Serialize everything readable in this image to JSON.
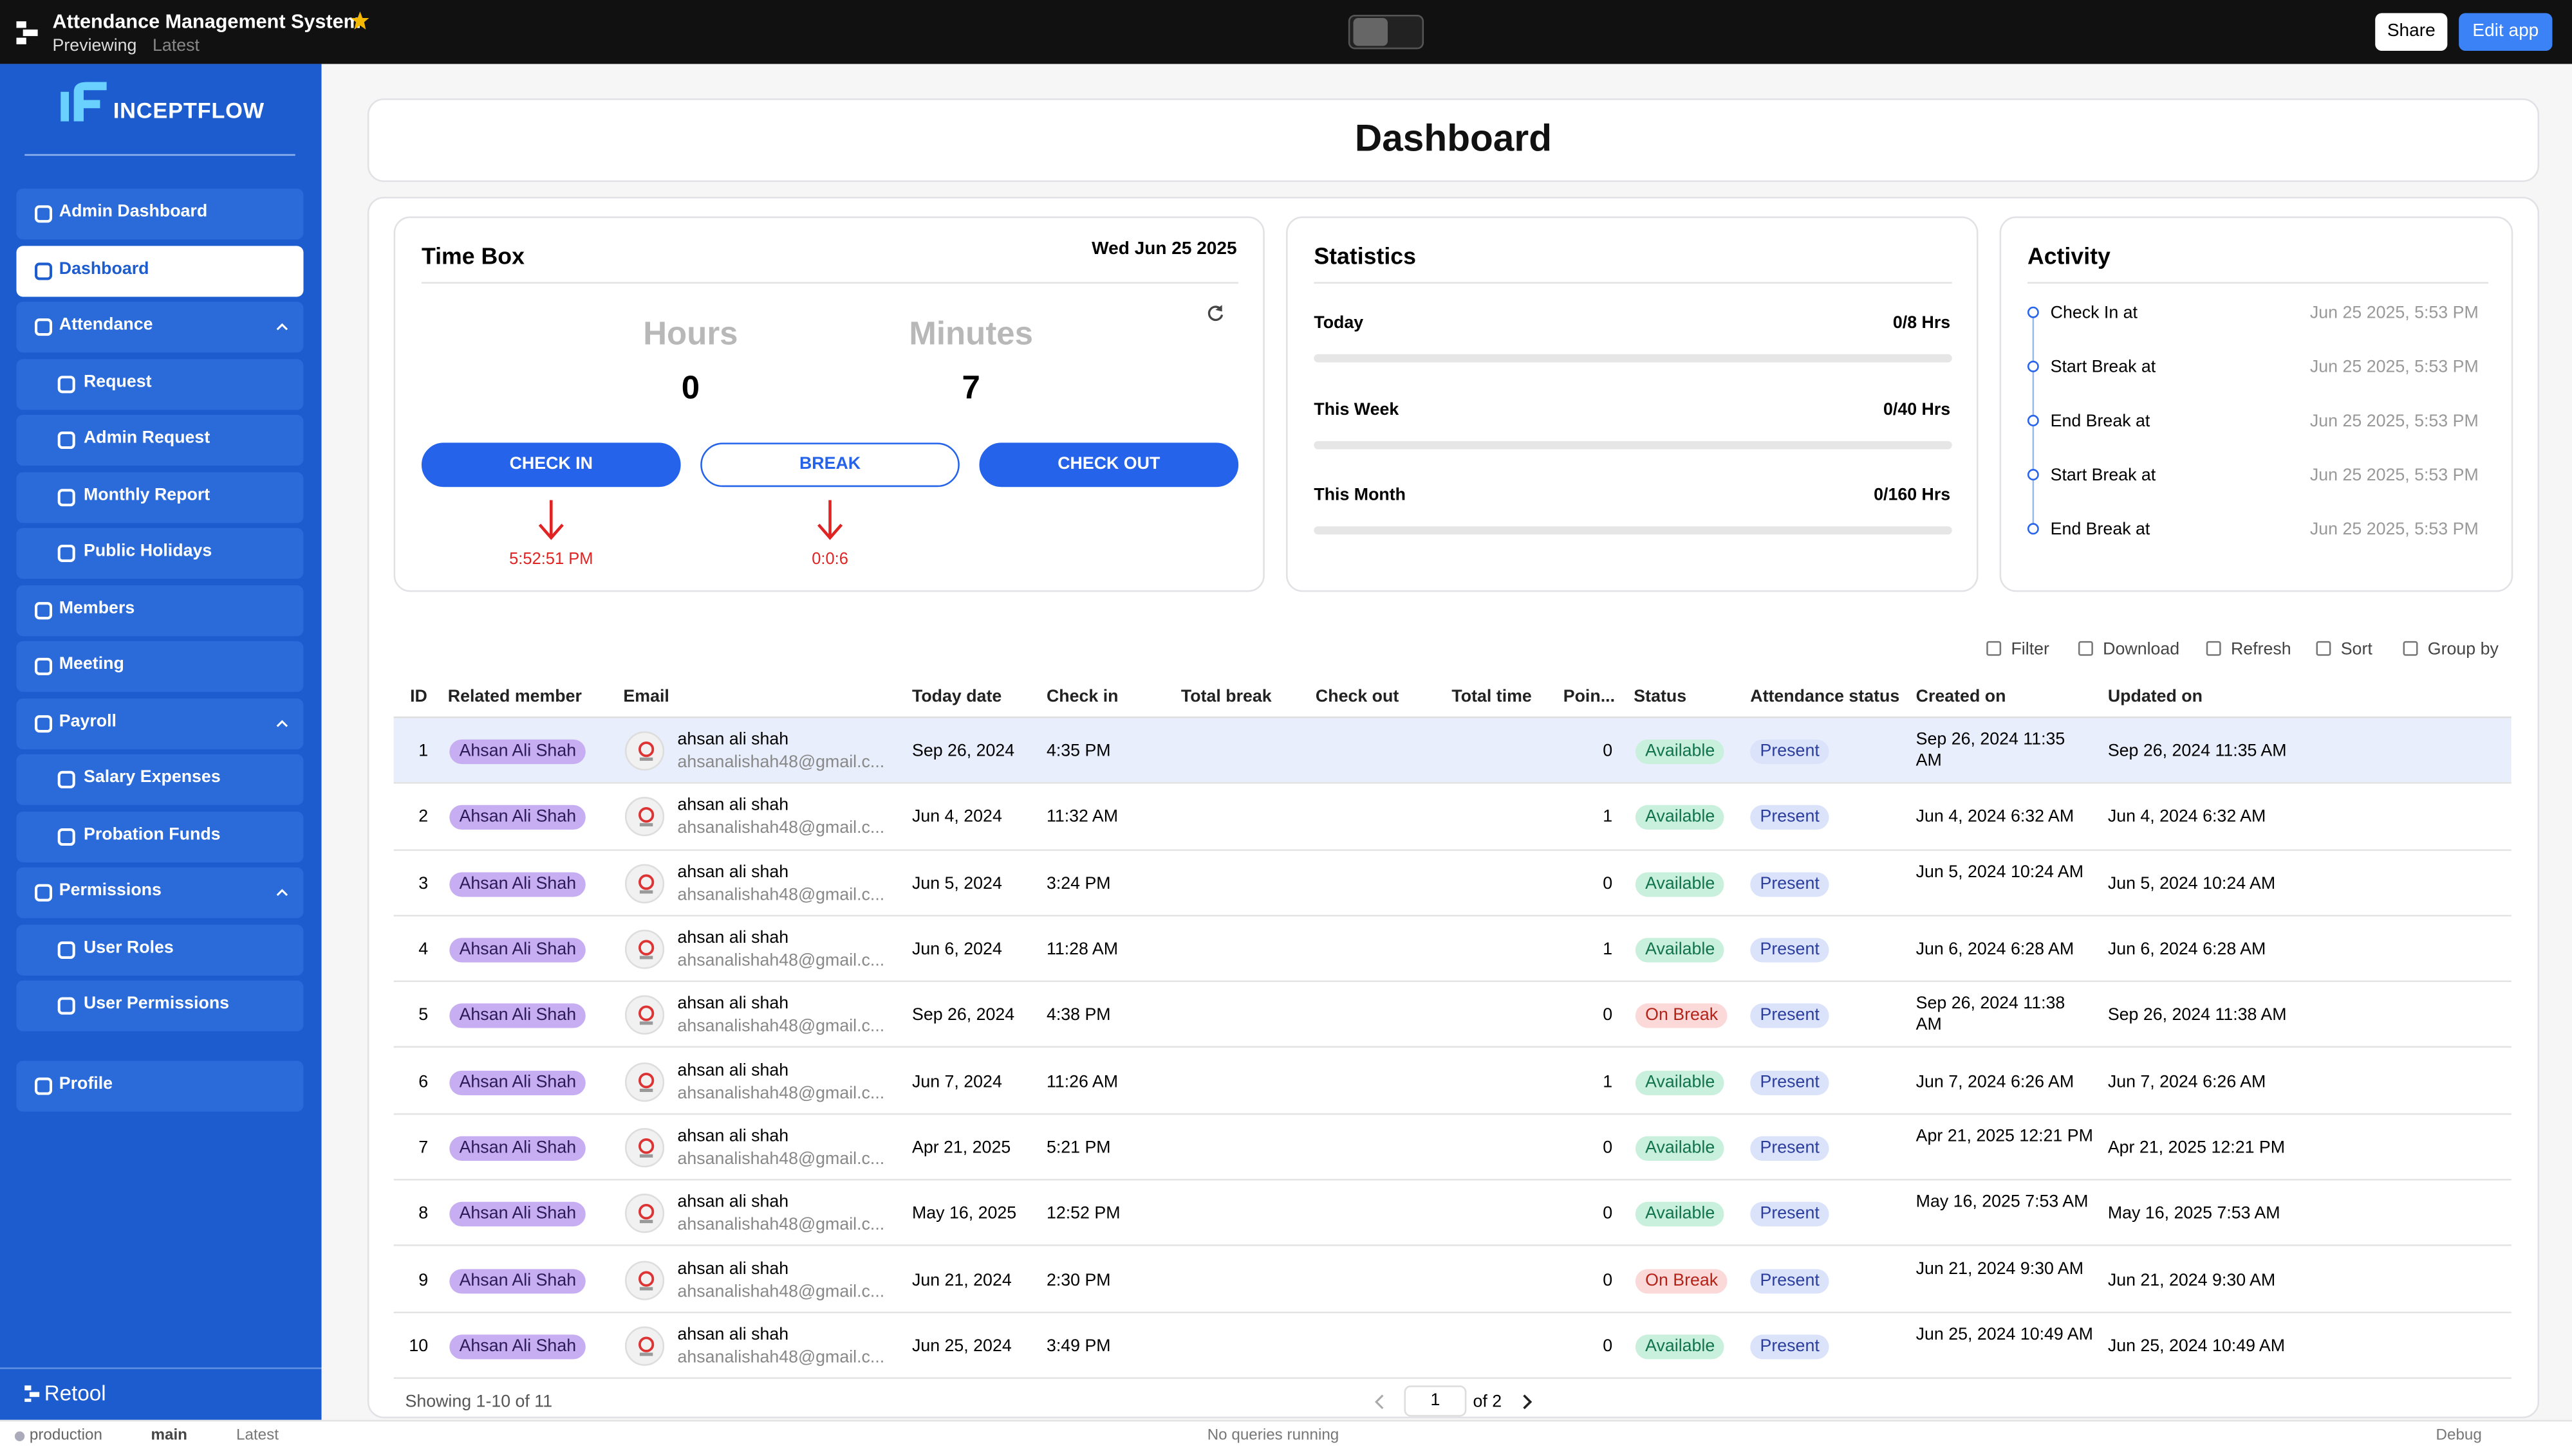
{
  "topbar": {
    "app_name": "Attendance Management System",
    "mode": "Previewing",
    "version": "Latest",
    "share": "Share",
    "edit": "Edit app"
  },
  "sidebar": {
    "logo": "INCEPTFLOW",
    "nav": [
      {
        "label": "Admin Dashboard"
      },
      {
        "label": "Dashboard",
        "selected": true
      },
      {
        "label": "Attendance",
        "children": [
          "Request",
          "Admin Request",
          "Monthly Report",
          "Public Holidays"
        ]
      },
      {
        "label": "Members"
      },
      {
        "label": "Meeting"
      },
      {
        "label": "Payroll",
        "children": [
          "Salary Expenses",
          "Probation Funds"
        ]
      },
      {
        "label": "Permissions",
        "children": [
          "User Roles",
          "User Permissions"
        ]
      }
    ],
    "profile": "Profile",
    "footer": "Retool"
  },
  "header": {
    "title": "Dashboard"
  },
  "time_box": {
    "title": "Time Box",
    "date": "Wed Jun 25 2025",
    "hours_label": "Hours",
    "hours": 0,
    "minutes_label": "Minutes",
    "minutes": 7,
    "buttons": [
      "CHECK IN",
      "BREAK",
      "CHECK OUT"
    ],
    "check_in_time": "5:52:51 PM",
    "break_time": "0:0:6"
  },
  "statistics": {
    "title": "Statistics",
    "rows": [
      {
        "label": "Today",
        "value": "0/8 Hrs"
      },
      {
        "label": "This Week",
        "value": "0/40 Hrs"
      },
      {
        "label": "This Month",
        "value": "0/160 Hrs"
      }
    ]
  },
  "activity": {
    "title": "Activity",
    "items": [
      {
        "label": "Check In at",
        "time": "Jun 25 2025, 5:53 PM"
      },
      {
        "label": "Start Break at",
        "time": "Jun 25 2025, 5:53 PM"
      },
      {
        "label": "End Break at",
        "time": "Jun 25 2025, 5:53 PM"
      },
      {
        "label": "Start Break at",
        "time": "Jun 25 2025, 5:53 PM"
      },
      {
        "label": "End Break at",
        "time": "Jun 25 2025, 5:53 PM"
      }
    ]
  },
  "toolbar": [
    "Filter",
    "Download",
    "Refresh",
    "Sort",
    "Group by"
  ],
  "table": {
    "columns": [
      "ID",
      "Related member",
      "Email",
      "Today date",
      "Check in",
      "Total break",
      "Check out",
      "Total time",
      "Poin...",
      "Status",
      "Attendance status",
      "Created on",
      "Updated on"
    ],
    "rows": [
      {
        "id": 1,
        "member": "Ahsan Ali Shah",
        "name": "ahsan ali shah",
        "email": "ahsanalishah48@gmail.c...",
        "date": "Sep 26, 2024",
        "check_in": "4:35 PM",
        "points": 0,
        "status": "Available",
        "status_color": "green",
        "attendance": "Present",
        "created": "Sep 26, 2024 11:35 AM",
        "updated": "Sep 26, 2024 11:35 AM",
        "selected": true
      },
      {
        "id": 2,
        "member": "Ahsan Ali Shah",
        "name": "ahsan ali shah",
        "email": "ahsanalishah48@gmail.c...",
        "date": "Jun 4, 2024",
        "check_in": "11:32 AM",
        "points": 1,
        "status": "Available",
        "status_color": "green",
        "attendance": "Present",
        "created": "Jun 4, 2024 6:32 AM",
        "updated": "Jun 4, 2024 6:32 AM"
      },
      {
        "id": 3,
        "member": "Ahsan Ali Shah",
        "name": "ahsan ali shah",
        "email": "ahsanalishah48@gmail.c...",
        "date": "Jun 5, 2024",
        "check_in": "3:24 PM",
        "points": 0,
        "status": "Available",
        "status_color": "green",
        "attendance": "Present",
        "created": "Jun 5, 2024 10:24 AM",
        "updated": "Jun 5, 2024 10:24 AM"
      },
      {
        "id": 4,
        "member": "Ahsan Ali Shah",
        "name": "ahsan ali shah",
        "email": "ahsanalishah48@gmail.c...",
        "date": "Jun 6, 2024",
        "check_in": "11:28 AM",
        "points": 1,
        "status": "Available",
        "status_color": "green",
        "attendance": "Present",
        "created": "Jun 6, 2024 6:28 AM",
        "updated": "Jun 6, 2024 6:28 AM"
      },
      {
        "id": 5,
        "member": "Ahsan Ali Shah",
        "name": "ahsan ali shah",
        "email": "ahsanalishah48@gmail.c...",
        "date": "Sep 26, 2024",
        "check_in": "4:38 PM",
        "points": 0,
        "status": "On Break",
        "status_color": "red",
        "attendance": "Present",
        "created": "Sep 26, 2024 11:38 AM",
        "updated": "Sep 26, 2024 11:38 AM"
      },
      {
        "id": 6,
        "member": "Ahsan Ali Shah",
        "name": "ahsan ali shah",
        "email": "ahsanalishah48@gmail.c...",
        "date": "Jun 7, 2024",
        "check_in": "11:26 AM",
        "points": 1,
        "status": "Available",
        "status_color": "green",
        "attendance": "Present",
        "created": "Jun 7, 2024 6:26 AM",
        "updated": "Jun 7, 2024 6:26 AM"
      },
      {
        "id": 7,
        "member": "Ahsan Ali Shah",
        "name": "ahsan ali shah",
        "email": "ahsanalishah48@gmail.c...",
        "date": "Apr 21, 2025",
        "check_in": "5:21 PM",
        "points": 0,
        "status": "Available",
        "status_color": "green",
        "attendance": "Present",
        "created": "Apr 21, 2025 12:21 PM",
        "updated": "Apr 21, 2025 12:21 PM"
      },
      {
        "id": 8,
        "member": "Ahsan Ali Shah",
        "name": "ahsan ali shah",
        "email": "ahsanalishah48@gmail.c...",
        "date": "May 16, 2025",
        "check_in": "12:52 PM",
        "points": 0,
        "status": "Available",
        "status_color": "green",
        "attendance": "Present",
        "created": "May 16, 2025 7:53 AM",
        "updated": "May 16, 2025 7:53 AM"
      },
      {
        "id": 9,
        "member": "Ahsan Ali Shah",
        "name": "ahsan ali shah",
        "email": "ahsanalishah48@gmail.c...",
        "date": "Jun 21, 2024",
        "check_in": "2:30 PM",
        "points": 0,
        "status": "On Break",
        "status_color": "red",
        "attendance": "Present",
        "created": "Jun 21, 2024 9:30 AM",
        "updated": "Jun 21, 2024 9:30 AM"
      },
      {
        "id": 10,
        "member": "Ahsan Ali Shah",
        "name": "ahsan ali shah",
        "email": "ahsanalishah48@gmail.c...",
        "date": "Jun 25, 2024",
        "check_in": "3:49 PM",
        "points": 0,
        "status": "Available",
        "status_color": "green",
        "attendance": "Present",
        "created": "Jun 25, 2024 10:49 AM",
        "updated": "Jun 25, 2024 10:49 AM"
      }
    ],
    "showing": "Showing 1-10 of 11",
    "page": 1,
    "of_pages": "of 2"
  },
  "status_bar": {
    "env": "production",
    "branch": "main",
    "version": "Latest",
    "queries": "No queries running",
    "debug": "Debug"
  }
}
